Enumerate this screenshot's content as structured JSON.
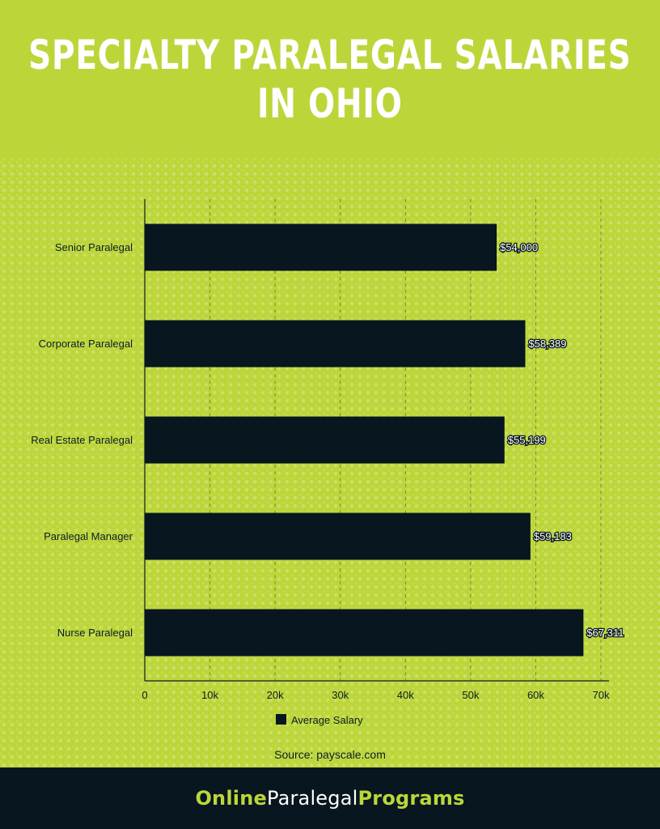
{
  "header": {
    "title_line1": "SPECIALTY PARALEGAL SALARIES",
    "title_line2": "IN OHIO"
  },
  "colors": {
    "background": "#bcd63a",
    "bar": "#07161f",
    "footer": "#07161f",
    "brand_accent": "#bcd63a"
  },
  "chart_data": {
    "type": "bar",
    "orientation": "horizontal",
    "categories": [
      "Senior Paralegal",
      "Corporate Paralegal",
      "Real Estate Paralegal",
      "Paralegal Manager",
      "Nurse Paralegal"
    ],
    "series": [
      {
        "name": "Average Salary",
        "values": [
          54000,
          58389,
          55199,
          59183,
          67311
        ],
        "labels": [
          "$54,000",
          "$58,389",
          "$55,199",
          "$59,183",
          "$67,311"
        ]
      }
    ],
    "xlim": [
      0,
      70000
    ],
    "xticks": [
      0,
      10000,
      20000,
      30000,
      40000,
      50000,
      60000,
      70000
    ],
    "xtick_labels": [
      "0",
      "10k",
      "20k",
      "30k",
      "40k",
      "50k",
      "60k",
      "70k"
    ],
    "grid": "vertical dashed",
    "legend": "bottom-center"
  },
  "source": "Source: payscale.com",
  "footer": {
    "brand_part1": "Online",
    "brand_part2": "Paralegal",
    "brand_part3": "Programs"
  }
}
